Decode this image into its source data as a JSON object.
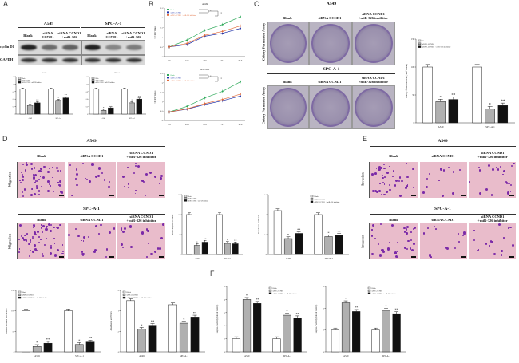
{
  "panels": {
    "A": "A",
    "B": "B",
    "C": "C",
    "D": "D",
    "E": "E",
    "F": "F"
  },
  "cell_lines": {
    "a549": "A549",
    "spc": "SPC-A-1"
  },
  "columns": {
    "blank": "Blank",
    "sirna": "siRNA CCND1",
    "combo_1": "siRNA CCND1",
    "combo_2": "+miR-326 inhibitor"
  },
  "rows": {
    "cyclin": "cyclin D1",
    "gapdh": "GAPDH",
    "colony": "Colony Formation Assay",
    "migration": "Migration",
    "invasion": "Invasion"
  },
  "colors": {
    "blank": "#ffffff",
    "sirna": "#b0b0b0",
    "combo": "#111111",
    "line_blank": "#2eaa5a",
    "line_sirna": "#1c2fa8",
    "line_combo": "#e06a3a",
    "stain": "#7b2aa8"
  },
  "legend": [
    "Blank",
    "siRNA CCND1",
    "siRNA CCND1 + miR-326 inhibitor"
  ],
  "chart_data": [
    {
      "id": "A-a549",
      "type": "bar",
      "title": "A549",
      "ylabel": "",
      "ylim": [
        0,
        1.5
      ],
      "categories": [
        "A549",
        "SPC-A-1"
      ],
      "series": [
        {
          "name": "Blank",
          "values": [
            1.0,
            1.0
          ]
        },
        {
          "name": "siRNA CCND1",
          "values": [
            0.35,
            0.55
          ]
        },
        {
          "name": "siRNA CCND1 + miR-326 inhibitor",
          "values": [
            0.45,
            0.65
          ]
        }
      ],
      "significance": [
        [
          "",
          ""
        ],
        [
          "*",
          "*"
        ],
        [
          "**",
          "**"
        ]
      ],
      "legend": "top-left"
    },
    {
      "id": "A-spc",
      "type": "bar",
      "title": "SPC-A-1",
      "ylabel": "",
      "ylim": [
        0,
        1.5
      ],
      "categories": [
        "A549",
        "SPC-A-1"
      ],
      "series": [
        {
          "name": "Blank",
          "values": [
            1.0,
            1.0
          ]
        },
        {
          "name": "siRNA CCND1",
          "values": [
            0.15,
            0.45
          ]
        },
        {
          "name": "siRNA CCND1 + miR-326 inhibitor",
          "values": [
            0.25,
            0.6
          ]
        }
      ],
      "significance": [
        [
          "",
          ""
        ],
        [
          "*",
          "*"
        ],
        [
          "**",
          "**"
        ]
      ],
      "legend": "top-left"
    },
    {
      "id": "B-a549",
      "type": "line",
      "title": "A549",
      "ylabel": "OD 450 Values",
      "ylim": [
        0,
        2.5
      ],
      "x": [
        "0 h",
        "24 h",
        "48 h",
        "72 h",
        "96 h"
      ],
      "series": [
        {
          "name": "Blank",
          "values": [
            0.5,
            0.85,
            1.35,
            1.65,
            2.05
          ]
        },
        {
          "name": "siRNA CCND1",
          "values": [
            0.5,
            0.62,
            1.05,
            1.2,
            1.45
          ]
        },
        {
          "name": "siRNA CCND1 + miR-326 inhibitor",
          "values": [
            0.5,
            0.68,
            1.1,
            1.3,
            1.58
          ]
        }
      ],
      "significance": [
        "*",
        "**"
      ],
      "legend": "top-left"
    },
    {
      "id": "B-spc",
      "type": "line",
      "title": "SPC-A-1",
      "ylabel": "OD 450 Values",
      "ylim": [
        0,
        2.5
      ],
      "x": [
        "0 h",
        "24 h",
        "48 h",
        "72 h",
        "96 h"
      ],
      "series": [
        {
          "name": "Blank",
          "values": [
            0.45,
            0.75,
            1.2,
            1.55,
            2.05
          ]
        },
        {
          "name": "siRNA CCND1",
          "values": [
            0.45,
            0.6,
            0.85,
            1.05,
            1.3
          ]
        },
        {
          "name": "siRNA CCND1 + miR-326 inhibitor",
          "values": [
            0.45,
            0.62,
            0.9,
            1.12,
            1.4
          ]
        }
      ],
      "significance": [
        "*",
        "**"
      ],
      "legend": "top-left"
    },
    {
      "id": "C",
      "type": "bar",
      "title": "",
      "ylabel": "Colony formation ratio (% of Blank)",
      "ylim": [
        0,
        150
      ],
      "yticks": [
        0,
        50,
        100,
        150
      ],
      "categories": [
        "A549",
        "SPC-A-1"
      ],
      "series": [
        {
          "name": "Blank",
          "values": [
            100,
            100
          ]
        },
        {
          "name": "siRNA CCND1",
          "values": [
            38,
            25
          ]
        },
        {
          "name": "siRNA CCND1 + miR-326 inhibitor",
          "values": [
            42,
            31
          ]
        }
      ],
      "significance": [
        [
          "",
          ""
        ],
        [
          "*",
          "*"
        ],
        [
          "**",
          "**"
        ]
      ],
      "legend": "top-left"
    },
    {
      "id": "D-number",
      "type": "bar",
      "title": "",
      "ylabel": "Relative migration cell number",
      "ylim": [
        0,
        150
      ],
      "yticks": [
        0,
        50,
        100,
        150
      ],
      "categories": [
        "A549",
        "SPC-A-1"
      ],
      "series": [
        {
          "name": "Blank",
          "values": [
            100,
            100
          ]
        },
        {
          "name": "siRNA CCND1",
          "values": [
            23,
            28
          ]
        },
        {
          "name": "siRNA CCND1 + miR-326 inhibitor",
          "values": [
            31,
            27
          ]
        }
      ],
      "significance": [
        [
          "",
          ""
        ],
        [
          "*",
          "*"
        ],
        [
          "**",
          "**"
        ]
      ],
      "legend": "top-left"
    },
    {
      "id": "D-absorbance",
      "type": "bar",
      "title": "",
      "ylabel": "Absorbance at 570 nm",
      "ylim": [
        0,
        1.5
      ],
      "yticks": [
        0,
        0.5,
        1.0,
        1.5
      ],
      "categories": [
        "A549",
        "SPC-A-1"
      ],
      "series": [
        {
          "name": "Blank",
          "values": [
            1.1,
            1.0
          ]
        },
        {
          "name": "siRNA CCND1",
          "values": [
            0.4,
            0.45
          ]
        },
        {
          "name": "siRNA CCND1 + miR-326 inhibitor",
          "values": [
            0.53,
            0.48
          ]
        }
      ],
      "significance": [
        [
          "",
          ""
        ],
        [
          "*",
          "*"
        ],
        [
          "**",
          "**"
        ]
      ],
      "legend": "top-right"
    },
    {
      "id": "E-number",
      "type": "bar",
      "title": "",
      "ylabel": "Relative invasion cell number",
      "ylim": [
        0,
        150
      ],
      "yticks": [
        0,
        50,
        100,
        150
      ],
      "categories": [
        "A549",
        "SPC-A-1"
      ],
      "series": [
        {
          "name": "Blank",
          "values": [
            100,
            100
          ]
        },
        {
          "name": "siRNA CCND1",
          "values": [
            13,
            18
          ]
        },
        {
          "name": "siRNA CCND1 + miR-326 inhibitor",
          "values": [
            21,
            24
          ]
        }
      ],
      "significance": [
        [
          "",
          ""
        ],
        [
          "*",
          "*"
        ],
        [
          "**",
          "**"
        ]
      ],
      "legend": "top-left"
    },
    {
      "id": "E-absorbance",
      "type": "bar",
      "title": "",
      "ylabel": "Absorbance at 570 nm",
      "ylim": [
        0,
        1.5
      ],
      "yticks": [
        0,
        0.5,
        1.0,
        1.5
      ],
      "categories": [
        "A549",
        "SPC-A-1"
      ],
      "series": [
        {
          "name": "Blank",
          "values": [
            1.25,
            1.15
          ]
        },
        {
          "name": "siRNA CCND1",
          "values": [
            0.55,
            0.7
          ]
        },
        {
          "name": "siRNA CCND1 + miR-326 inhibitor",
          "values": [
            0.65,
            0.85
          ]
        }
      ],
      "significance": [
        [
          "",
          ""
        ],
        [
          "*",
          "*"
        ],
        [
          "**",
          "**"
        ]
      ],
      "legend": "top-left"
    },
    {
      "id": "F-caspase3",
      "type": "bar",
      "title": "",
      "ylabel": "Caspase-3 activity (fold of control)",
      "ylim": [
        0,
        5
      ],
      "yticks": [
        0,
        1,
        2,
        3,
        4,
        5
      ],
      "categories": [
        "A549",
        "SPC-A-1"
      ],
      "series": [
        {
          "name": "Blank",
          "values": [
            1,
            1
          ]
        },
        {
          "name": "siRNA CCND1",
          "values": [
            4.0,
            2.8
          ]
        },
        {
          "name": "siRNA CCND1 + miR-326 inhibitor",
          "values": [
            3.7,
            2.6
          ]
        }
      ],
      "significance": [
        [
          "",
          ""
        ],
        [
          "*",
          "*"
        ],
        [
          "**",
          "**"
        ]
      ],
      "legend": "top-right"
    },
    {
      "id": "F-caspase7",
      "type": "bar",
      "title": "",
      "ylabel": "Caspase-7 activity (fold of control)",
      "ylim": [
        0,
        3
      ],
      "yticks": [
        0,
        1,
        2,
        3
      ],
      "categories": [
        "A549",
        "SPC-A-1"
      ],
      "series": [
        {
          "name": "Blank",
          "values": [
            1,
            1
          ]
        },
        {
          "name": "siRNA CCND1",
          "values": [
            2.25,
            1.9
          ]
        },
        {
          "name": "siRNA CCND1 + miR-326 inhibitor",
          "values": [
            1.85,
            1.75
          ]
        }
      ],
      "significance": [
        [
          "",
          ""
        ],
        [
          "*",
          "*"
        ],
        [
          "**",
          "**"
        ]
      ],
      "legend": "top-right"
    }
  ]
}
